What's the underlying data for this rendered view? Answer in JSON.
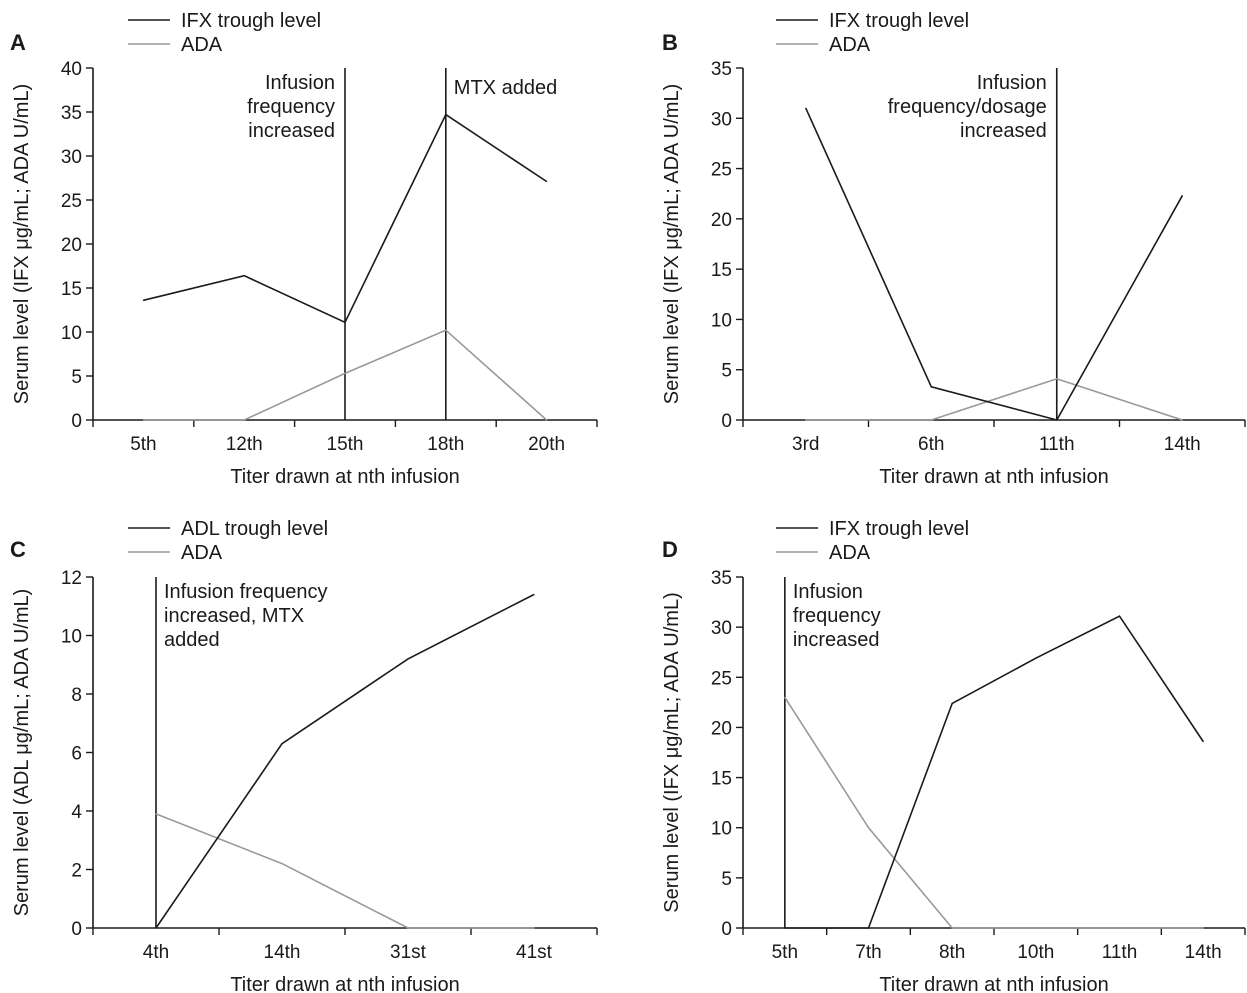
{
  "chart_data": [
    {
      "type": "line",
      "panel_label": "A",
      "categories": [
        "5th",
        "12th",
        "15th",
        "18th",
        "20th"
      ],
      "xlabel": "Titer drawn at nth infusion",
      "ylabel": "Serum level (IFX μg/mL; ADA U/mL)",
      "ylim": [
        0,
        40
      ],
      "yticks": [
        "0",
        "5",
        "10",
        "15",
        "20",
        "25",
        "30",
        "35",
        "40"
      ],
      "legend_position": "top-left",
      "series": [
        {
          "name": "IFX trough level",
          "color": "#1a1a1a",
          "values": [
            13.6,
            16.4,
            11.1,
            34.7,
            27.1
          ]
        },
        {
          "name": "ADA",
          "color": "#999999",
          "values": [
            0,
            0,
            5.3,
            10.2,
            0
          ]
        }
      ],
      "events": [
        {
          "at_category": 2,
          "label_lines": [
            "Infusion",
            "frequency",
            "increased"
          ],
          "label_side": "left"
        },
        {
          "at_category": 3,
          "label_lines": [
            "MTX added"
          ],
          "label_side": "right"
        }
      ]
    },
    {
      "type": "line",
      "panel_label": "B",
      "categories": [
        "3rd",
        "6th",
        "11th",
        "14th"
      ],
      "xlabel": "Titer drawn at nth infusion",
      "ylabel": "Serum level (IFX μg/mL; ADA U/mL)",
      "ylim": [
        0,
        35
      ],
      "yticks": [
        "0",
        "5",
        "10",
        "15",
        "20",
        "25",
        "30",
        "35"
      ],
      "legend_position": "top-left",
      "series": [
        {
          "name": "IFX trough level",
          "color": "#1a1a1a",
          "values": [
            31,
            3.3,
            0,
            22.3
          ]
        },
        {
          "name": "ADA",
          "color": "#999999",
          "values": [
            0,
            0,
            4.1,
            0
          ]
        }
      ],
      "events": [
        {
          "at_category": 2,
          "label_lines": [
            "Infusion",
            "frequency/dosage",
            "increased"
          ],
          "label_side": "left"
        }
      ]
    },
    {
      "type": "line",
      "panel_label": "C",
      "categories": [
        "4th",
        "14th",
        "31st",
        "41st"
      ],
      "xlabel": "Titer drawn at nth infusion",
      "ylabel": "Serum level (ADL μg/mL; ADA U/mL)",
      "ylim": [
        0,
        12
      ],
      "yticks": [
        "0",
        "2",
        "4",
        "6",
        "8",
        "10",
        "12"
      ],
      "legend_position": "top-left",
      "series": [
        {
          "name": "ADL trough level",
          "color": "#1a1a1a",
          "values": [
            0,
            6.3,
            9.2,
            11.4
          ]
        },
        {
          "name": "ADA",
          "color": "#999999",
          "values": [
            3.9,
            2.2,
            0,
            0
          ]
        }
      ],
      "events": [
        {
          "at_category": 0,
          "label_lines": [
            "Infusion frequency",
            "increased, MTX",
            "added"
          ],
          "label_side": "right"
        }
      ]
    },
    {
      "type": "line",
      "panel_label": "D",
      "categories": [
        "5th",
        "7th",
        "8th",
        "10th",
        "11th",
        "14th"
      ],
      "xlabel": "Titer drawn at nth infusion",
      "ylabel": "Serum level (IFX μg/mL; ADA U/mL)",
      "ylim": [
        0,
        35
      ],
      "yticks": [
        "0",
        "5",
        "10",
        "15",
        "20",
        "25",
        "30",
        "35"
      ],
      "legend_position": "top-left",
      "series": [
        {
          "name": "IFX trough level",
          "color": "#1a1a1a",
          "values": [
            0,
            0,
            22.4,
            26.9,
            31.1,
            18.6
          ]
        },
        {
          "name": "ADA",
          "color": "#999999",
          "values": [
            23,
            10,
            0,
            0,
            0,
            0
          ]
        }
      ],
      "events": [
        {
          "at_category": 0,
          "label_lines": [
            "Infusion",
            "frequency",
            "increased"
          ],
          "label_side": "right"
        }
      ]
    }
  ]
}
